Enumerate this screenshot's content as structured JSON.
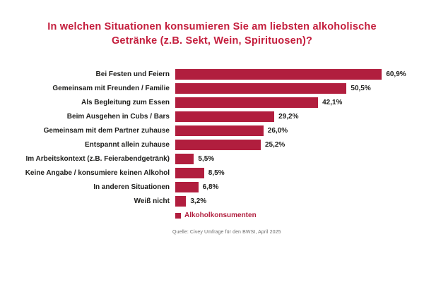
{
  "title": {
    "line1": "In welchen Situationen konsumieren Sie am liebsten alkoholische",
    "line2": "Getränke (z.B. Sekt, Wein, Spirituosen)?"
  },
  "chart_data": {
    "type": "bar",
    "orientation": "horizontal",
    "title": "In welchen Situationen konsumieren Sie am liebsten alkoholische Getränke (z.B. Sekt, Wein, Spirituosen)?",
    "categories": [
      "Bei Festen und Feiern",
      "Gemeinsam mit Freunden / Familie",
      "Als Begleitung zum Essen",
      "Beim Ausgehen in Cubs / Bars",
      "Gemeinsam mit dem Partner zuhause",
      "Entspannt allein zuhause",
      "Im Arbeitskontext (z.B. Feierabendgetränk)",
      "Keine Angabe / konsumiere keinen Alkohol",
      "In anderen Situationen",
      "Weiß nicht"
    ],
    "values": [
      60.9,
      50.5,
      42.1,
      29.2,
      26.0,
      25.2,
      5.5,
      8.5,
      6.8,
      3.2
    ],
    "value_labels": [
      "60,9%",
      "50,5%",
      "42,1%",
      "29,2%",
      "26,0%",
      "25,2%",
      "5,5%",
      "8,5%",
      "6,8%",
      "3,2%"
    ],
    "unit": "%",
    "xlim": [
      0,
      65
    ],
    "grid": false,
    "legend": [
      "Alkoholkonsumenten"
    ],
    "legend_position": "bottom"
  },
  "footer": {
    "source": "Quelle: Civey Umfrage für den BWSI, April 2025"
  },
  "colors": {
    "title": "#C41E3D",
    "bar": "#B11E3E",
    "label_text": "#1D1D1B",
    "source_text": "#6E6E6E"
  }
}
